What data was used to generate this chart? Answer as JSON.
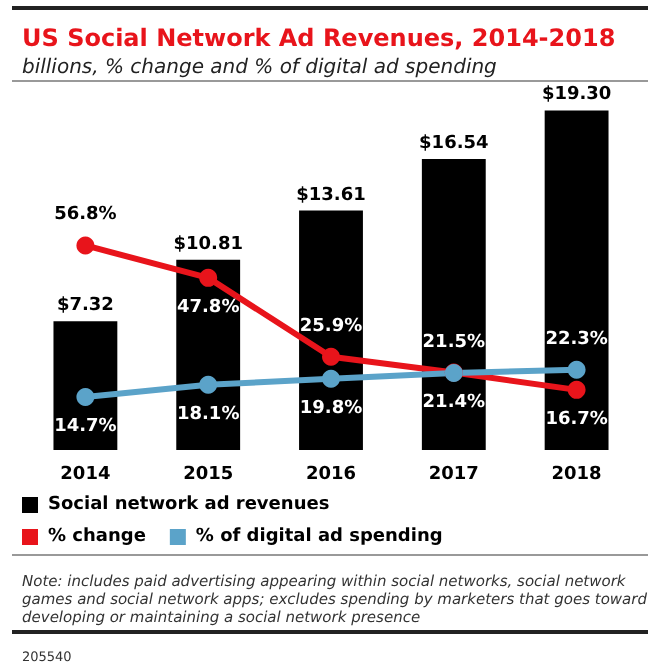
{
  "chart_data": {
    "type": "bar",
    "title": "US Social Network Ad Revenues, 2014-2018",
    "subtitle": "billions, % change and % of digital ad spending",
    "categories": [
      "2014",
      "2015",
      "2016",
      "2017",
      "2018"
    ],
    "series": [
      {
        "name": "Social network ad revenues",
        "color": "#000000",
        "values": [
          7.32,
          10.81,
          13.61,
          16.54,
          19.3
        ],
        "value_labels": [
          "$7.32",
          "$10.81",
          "$13.61",
          "$16.54",
          "$19.30"
        ]
      },
      {
        "name": "% change",
        "type": "line",
        "axis": "y2",
        "color": "#e8141b",
        "values": [
          56.8,
          47.8,
          25.9,
          21.5,
          16.7
        ],
        "value_labels": [
          "56.8%",
          "47.8%",
          "25.9%",
          "21.5%",
          "16.7%"
        ]
      },
      {
        "name": "% of digital ad spending",
        "type": "line",
        "axis": "y2",
        "color": "#5ba3c9",
        "values": [
          14.7,
          18.1,
          19.8,
          21.4,
          22.3
        ],
        "value_labels": [
          "14.7%",
          "18.1%",
          "19.8%",
          "21.4%",
          "22.3%"
        ]
      }
    ],
    "tick_labels": "x",
    "legend": "bottom",
    "marker": "circle",
    "annotations": [
      "Note: includes paid advertising appearing within social networks, social network games and social network apps; excludes spending by marketers that goes toward developing or maintaining a social network presence",
      "205540"
    ]
  }
}
